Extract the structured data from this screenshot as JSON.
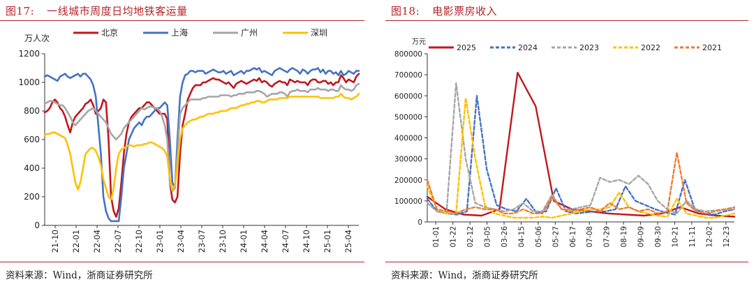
{
  "chart_data": [
    {
      "type": "line",
      "figure_number": "图17:",
      "title": "一线城市周度日均地铁客运量",
      "unit_label": "万人次",
      "ylim": [
        0,
        1200
      ],
      "y_ticks": [
        "0",
        "200",
        "400",
        "600",
        "800",
        "1000",
        "1200"
      ],
      "x_ticks": [
        "21-10",
        "22-01",
        "22-04",
        "22-07",
        "22-10",
        "23-01",
        "23-04",
        "23-07",
        "23-10",
        "24-01",
        "24-04",
        "24-07",
        "24-10",
        "25-01",
        "25-04"
      ],
      "source": "资料来源：Wind，浙商证券研究所",
      "series": [
        {
          "name": "北京",
          "color": "#c0171d",
          "values": [
            790,
            800,
            820,
            860,
            880,
            860,
            820,
            800,
            760,
            700,
            650,
            720,
            760,
            780,
            800,
            820,
            850,
            860,
            880,
            840,
            780,
            800,
            820,
            880,
            860,
            600,
            200,
            100,
            60,
            120,
            300,
            500,
            640,
            720,
            760,
            780,
            800,
            820,
            820,
            840,
            860,
            860,
            840,
            820,
            800,
            780,
            780,
            780,
            740,
            300,
            180,
            160,
            200,
            500,
            700,
            780,
            880,
            920,
            960,
            980,
            980,
            980,
            1000,
            1000,
            1010,
            1020,
            1030,
            1020,
            1020,
            1010,
            1000,
            990,
            1000,
            980,
            960,
            990,
            1000,
            1010,
            1000,
            990,
            1000,
            1010,
            1020,
            1010,
            1030,
            1000,
            1010,
            1000,
            980,
            970,
            990,
            1000,
            1010,
            1000,
            1000,
            980,
            1020,
            1010,
            1000,
            1010,
            1000,
            1000,
            1000,
            980,
            1010,
            1020,
            1020,
            1000,
            1000,
            1010,
            1010,
            990,
            1000,
            980,
            1000,
            1000,
            1050,
            1030,
            1000,
            1020,
            1010,
            1000,
            1040,
            1060
          ]
        },
        {
          "name": "上海",
          "color": "#4472c4",
          "values": [
            1040,
            1050,
            1040,
            1030,
            1020,
            1010,
            1040,
            1050,
            1060,
            1040,
            1030,
            1040,
            1050,
            1060,
            1040,
            1060,
            1060,
            1040,
            1020,
            980,
            900,
            700,
            500,
            200,
            100,
            50,
            30,
            30,
            30,
            30,
            200,
            400,
            500,
            600,
            640,
            680,
            700,
            720,
            700,
            740,
            760,
            760,
            780,
            800,
            820,
            820,
            840,
            860,
            840,
            600,
            300,
            260,
            600,
            900,
            1000,
            1050,
            1060,
            1080,
            1080,
            1070,
            1080,
            1080,
            1080,
            1060,
            1070,
            1080,
            1090,
            1080,
            1070,
            1070,
            1080,
            1060,
            1070,
            1080,
            1050,
            1060,
            1070,
            1080,
            1060,
            1080,
            1080,
            1090,
            1100,
            1090,
            1100,
            1070,
            1080,
            1070,
            1060,
            1050,
            1080,
            1090,
            1100,
            1090,
            1080,
            1070,
            1090,
            1100,
            1090,
            1080,
            1060,
            1090,
            1080,
            1060,
            1080,
            1090,
            1090,
            1100,
            1070,
            1090,
            1060,
            1080,
            1080,
            1060,
            1070,
            1050,
            1080,
            1050,
            1060,
            1080,
            1070,
            1060,
            1080,
            1080
          ]
        },
        {
          "name": "广州",
          "color": "#a5a5a5",
          "values": [
            850,
            860,
            870,
            870,
            860,
            850,
            840,
            840,
            820,
            790,
            760,
            720,
            700,
            720,
            740,
            760,
            780,
            800,
            810,
            820,
            800,
            780,
            760,
            740,
            720,
            680,
            640,
            620,
            600,
            620,
            640,
            680,
            700,
            720,
            740,
            760,
            780,
            800,
            820,
            810,
            820,
            830,
            830,
            820,
            820,
            800,
            760,
            700,
            600,
            300,
            240,
            260,
            500,
            780,
            820,
            840,
            860,
            880,
            880,
            880,
            880,
            880,
            890,
            890,
            900,
            900,
            900,
            900,
            900,
            910,
            910,
            910,
            910,
            900,
            910,
            910,
            920,
            920,
            920,
            930,
            930,
            930,
            930,
            940,
            940,
            930,
            920,
            900,
            910,
            920,
            920,
            920,
            930,
            930,
            920,
            900,
            930,
            940,
            940,
            950,
            940,
            940,
            940,
            930,
            950,
            950,
            950,
            960,
            950,
            950,
            950,
            940,
            950,
            950,
            940,
            940,
            980,
            960,
            950,
            950,
            940,
            950,
            980,
            990
          ]
        },
        {
          "name": "深圳",
          "color": "#ffc000",
          "values": [
            630,
            640,
            640,
            650,
            650,
            640,
            630,
            620,
            610,
            560,
            500,
            400,
            300,
            250,
            300,
            400,
            500,
            520,
            540,
            540,
            520,
            480,
            420,
            320,
            260,
            200,
            180,
            260,
            400,
            500,
            530,
            540,
            550,
            560,
            560,
            550,
            560,
            560,
            560,
            570,
            570,
            580,
            580,
            570,
            560,
            550,
            540,
            520,
            480,
            330,
            250,
            280,
            420,
            600,
            680,
            700,
            720,
            730,
            740,
            740,
            750,
            760,
            760,
            770,
            780,
            780,
            780,
            790,
            790,
            800,
            800,
            800,
            810,
            820,
            820,
            820,
            830,
            840,
            840,
            850,
            850,
            860,
            860,
            870,
            870,
            860,
            860,
            870,
            880,
            880,
            880,
            880,
            890,
            890,
            890,
            890,
            900,
            900,
            900,
            900,
            900,
            900,
            900,
            900,
            900,
            900,
            900,
            900,
            890,
            890,
            890,
            890,
            890,
            890,
            900,
            900,
            920,
            900,
            890,
            890,
            880,
            890,
            900,
            920
          ]
        }
      ]
    },
    {
      "type": "line",
      "figure_number": "图18:",
      "title": "电影票房收入",
      "unit_label": "万元",
      "ylim": [
        0,
        800000
      ],
      "y_ticks": [
        "0",
        "100000",
        "200000",
        "300000",
        "400000",
        "500000",
        "600000",
        "700000",
        "800000"
      ],
      "x_ticks": [
        "01-01",
        "01-22",
        "02-12",
        "03-05",
        "03-26",
        "04-15",
        "05-06",
        "05-27",
        "06-17",
        "07-08",
        "07-29",
        "08-19",
        "09-09",
        "09-30",
        "10-21",
        "11-11",
        "12-02",
        "12-23"
      ],
      "source": "资料来源：Wind，浙商证券研究所",
      "series": [
        {
          "name": "2025",
          "color": "#c0171d",
          "dashed": false,
          "values": [
            120000,
            60000,
            35000,
            30000,
            60000,
            710000,
            550000,
            100000,
            60000,
            50000,
            40000,
            35000,
            30000,
            40000,
            70000,
            40000,
            30000,
            25000
          ]
        },
        {
          "name": "2024",
          "color": "#4472c4",
          "dashed": true,
          "values": [
            110000,
            50000,
            40000,
            35000,
            50000,
            600000,
            250000,
            80000,
            60000,
            50000,
            110000,
            45000,
            50000,
            160000,
            50000,
            40000,
            45000,
            50000,
            50000,
            60000,
            170000,
            100000,
            80000,
            60000,
            45000,
            35000,
            200000,
            60000,
            40000,
            35000,
            50000,
            60000
          ]
        },
        {
          "name": "2023",
          "color": "#a5a5a5",
          "dashed": true,
          "values": [
            90000,
            50000,
            40000,
            660000,
            300000,
            90000,
            70000,
            60000,
            50000,
            60000,
            90000,
            50000,
            50000,
            130000,
            60000,
            60000,
            70000,
            80000,
            210000,
            190000,
            200000,
            180000,
            220000,
            180000,
            100000,
            60000,
            40000,
            100000,
            60000,
            50000,
            55000,
            60000,
            60000
          ]
        },
        {
          "name": "2022",
          "color": "#ffc000",
          "dashed": true,
          "values": [
            170000,
            60000,
            40000,
            40000,
            590000,
            300000,
            80000,
            40000,
            30000,
            20000,
            20000,
            20000,
            25000,
            20000,
            30000,
            40000,
            50000,
            60000,
            60000,
            70000,
            140000,
            70000,
            50000,
            40000,
            30000,
            25000,
            110000,
            40000,
            30000,
            20000,
            20000,
            30000,
            40000
          ]
        },
        {
          "name": "2021",
          "color": "#ed7d31",
          "dashed": true,
          "values": [
            200000,
            60000,
            50000,
            40000,
            60000,
            70000,
            60000,
            60000,
            40000,
            40000,
            60000,
            40000,
            40000,
            120000,
            60000,
            50000,
            60000,
            70000,
            50000,
            90000,
            60000,
            70000,
            50000,
            60000,
            40000,
            50000,
            330000,
            90000,
            50000,
            40000,
            50000,
            60000,
            70000
          ]
        }
      ]
    }
  ]
}
